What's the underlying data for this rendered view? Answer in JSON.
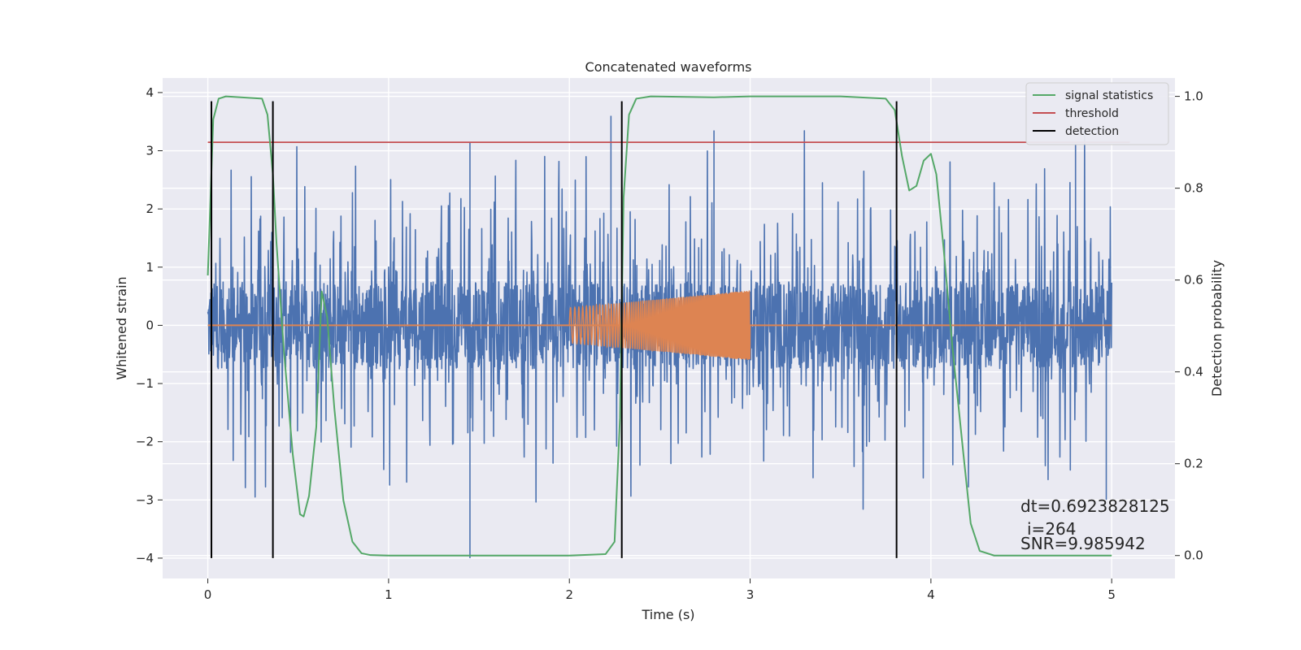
{
  "chart_data": {
    "type": "line",
    "title": "Concatenated waveforms",
    "xlabel": "Time (s)",
    "ylabel": "Whitened strain",
    "ylabel_right": "Detection probability",
    "xlim": [
      -0.25,
      5.35
    ],
    "ylim": [
      -4.35,
      4.25
    ],
    "ylim_right": [
      -0.05,
      1.04
    ],
    "x_ticks": [
      0,
      1,
      2,
      3,
      4,
      5
    ],
    "y_ticks": [
      -4,
      -3,
      -2,
      -1,
      0,
      1,
      2,
      3,
      4
    ],
    "y_ticks_right": [
      0.0,
      0.2,
      0.4,
      0.6,
      0.8,
      1.0
    ],
    "grid": true,
    "legend_position": "top-right",
    "colors": {
      "strain": "#4c72b0",
      "injection": "#dd8452",
      "signal_statistics": "#55a868",
      "threshold": "#c44e52",
      "detection": "#000000",
      "background": "#eaeaf2",
      "grid": "#ffffff"
    },
    "series": [
      {
        "name": "signal statistics",
        "axis": "right",
        "x": [
          0.0,
          0.03,
          0.06,
          0.1,
          0.3,
          0.33,
          0.36,
          0.38,
          0.42,
          0.47,
          0.51,
          0.53,
          0.56,
          0.6,
          0.63,
          0.66,
          0.7,
          0.75,
          0.8,
          0.85,
          0.9,
          1.0,
          1.5,
          2.0,
          2.2,
          2.25,
          2.28,
          2.3,
          2.33,
          2.37,
          2.45,
          2.8,
          3.0,
          3.5,
          3.75,
          3.8,
          3.84,
          3.88,
          3.92,
          3.96,
          4.0,
          4.03,
          4.07,
          4.12,
          4.18,
          4.22,
          4.27,
          4.35,
          5.0
        ],
        "y": [
          0.61,
          0.95,
          0.995,
          1.0,
          0.995,
          0.96,
          0.83,
          0.68,
          0.45,
          0.22,
          0.09,
          0.085,
          0.13,
          0.28,
          0.575,
          0.52,
          0.32,
          0.12,
          0.03,
          0.005,
          0.001,
          0.0,
          0.0,
          0.0,
          0.003,
          0.03,
          0.3,
          0.78,
          0.96,
          0.995,
          1.0,
          0.998,
          1.0,
          1.0,
          0.995,
          0.97,
          0.87,
          0.795,
          0.805,
          0.86,
          0.875,
          0.83,
          0.67,
          0.45,
          0.22,
          0.07,
          0.01,
          0.0,
          0.0
        ]
      },
      {
        "name": "threshold",
        "axis": "right",
        "x": [
          0.0,
          5.1
        ],
        "y": [
          0.9,
          0.9
        ]
      },
      {
        "name": "detection",
        "axis": "left",
        "x_positions": [
          0.02,
          0.36,
          2.29,
          3.81
        ],
        "y_range": [
          -4.0,
          3.85
        ]
      },
      {
        "axis": "left",
        "description_free": true,
        "x_range": [
          0,
          5
        ],
        "amplitude": 0.75,
        "peak_max": 3.9,
        "peak_min": -4.0
      },
      {
        "axis": "left",
        "x_range": [
          2.0,
          3.0
        ],
        "baseline_x": [
          0,
          5
        ],
        "amplitude_start": 0.3,
        "amplitude_end": 0.6
      }
    ],
    "legend": [
      "signal statistics",
      "threshold",
      "detection"
    ],
    "annotations": {
      "dt": "dt=0.6923828125",
      "i": "i=264",
      "snr": "SNR=9.985942"
    }
  }
}
